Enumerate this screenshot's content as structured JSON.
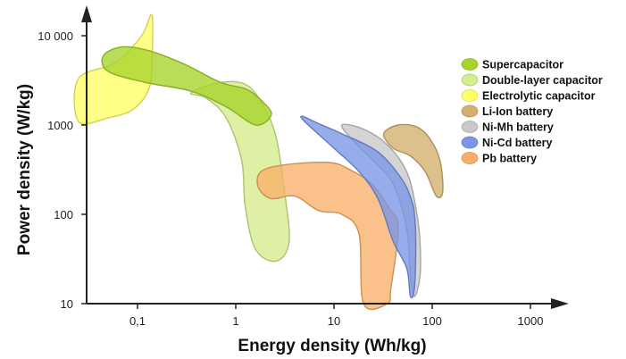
{
  "chart_data": {
    "type": "area",
    "title": "",
    "xlabel": "Energy density (Wh/kg)",
    "ylabel": "Power density (W/kg)",
    "xscale": "log",
    "yscale": "log",
    "xlim": [
      0.03,
      1000
    ],
    "ylim": [
      10,
      10000
    ],
    "x_ticks": [
      {
        "value": 0.1,
        "label": "0,1"
      },
      {
        "value": 1,
        "label": "1"
      },
      {
        "value": 10,
        "label": "10"
      },
      {
        "value": 100,
        "label": "100"
      },
      {
        "value": 1000,
        "label": "1000"
      }
    ],
    "y_ticks": [
      {
        "value": 10,
        "label": "10"
      },
      {
        "value": 100,
        "label": "100"
      },
      {
        "value": 1000,
        "label": "1000"
      },
      {
        "value": 10000,
        "label": "10 000"
      }
    ],
    "grid": false,
    "legend_position": "right",
    "series": [
      {
        "name": "Electrolytic capacitor",
        "color": "#ffff66",
        "region": [
          [
            0.025,
            3300
          ],
          [
            0.06,
            5000
          ],
          [
            0.11,
            10000
          ],
          [
            0.14,
            17000
          ],
          [
            0.14,
            5000
          ],
          [
            0.13,
            2500
          ],
          [
            0.09,
            1500
          ],
          [
            0.05,
            1200
          ],
          [
            0.025,
            1100
          ]
        ]
      },
      {
        "name": "Double-layer capacitor",
        "color": "#d4ec8c",
        "region": [
          [
            0.7,
            3000
          ],
          [
            1.3,
            2800
          ],
          [
            2.0,
            1500
          ],
          [
            2.6,
            700
          ],
          [
            3.1,
            200
          ],
          [
            3.5,
            50
          ],
          [
            2.6,
            30
          ],
          [
            1.6,
            40
          ],
          [
            1.25,
            120
          ],
          [
            1.15,
            400
          ],
          [
            0.8,
            1200
          ],
          [
            0.5,
            2000
          ],
          [
            0.35,
            2300
          ]
        ]
      },
      {
        "name": "Supercapacitor",
        "color": "#a6d42a",
        "region": [
          [
            0.045,
            6000
          ],
          [
            0.07,
            7500
          ],
          [
            0.13,
            6800
          ],
          [
            0.3,
            4800
          ],
          [
            0.7,
            3000
          ],
          [
            1.3,
            2500
          ],
          [
            1.9,
            1800
          ],
          [
            2.3,
            1300
          ],
          [
            1.6,
            1000
          ],
          [
            0.8,
            1600
          ],
          [
            0.35,
            2400
          ],
          [
            0.12,
            3000
          ],
          [
            0.05,
            4000
          ]
        ]
      },
      {
        "name": "Pb battery",
        "color": "#f8b069",
        "region": [
          [
            1.8,
            300
          ],
          [
            3.2,
            360
          ],
          [
            9,
            380
          ],
          [
            15,
            310
          ],
          [
            24,
            220
          ],
          [
            36,
            120
          ],
          [
            45,
            70
          ],
          [
            38,
            15
          ],
          [
            35,
            10
          ],
          [
            20,
            10
          ],
          [
            18,
            60
          ],
          [
            12,
            100
          ],
          [
            7,
            110
          ],
          [
            4,
            160
          ],
          [
            2.3,
            150
          ],
          [
            1.7,
            200
          ]
        ]
      },
      {
        "name": "Ni-Mh  battery",
        "color": "#c8c8c8",
        "region": [
          [
            12,
            1000
          ],
          [
            20,
            900
          ],
          [
            35,
            600
          ],
          [
            55,
            300
          ],
          [
            68,
            120
          ],
          [
            75,
            50
          ],
          [
            75,
            20
          ],
          [
            66,
            12
          ],
          [
            60,
            20
          ],
          [
            55,
            70
          ],
          [
            40,
            220
          ],
          [
            25,
            400
          ],
          [
            16,
            650
          ]
        ]
      },
      {
        "name": "Ni-Cd battery",
        "color": "#7895e6",
        "region": [
          [
            4.8,
            1250
          ],
          [
            6.8,
            1050
          ],
          [
            12,
            800
          ],
          [
            28,
            500
          ],
          [
            50,
            240
          ],
          [
            62,
            140
          ],
          [
            66,
            100
          ],
          [
            68,
            50
          ],
          [
            66,
            15
          ],
          [
            60,
            12
          ],
          [
            55,
            25
          ],
          [
            40,
            50
          ],
          [
            28,
            150
          ],
          [
            18,
            300
          ],
          [
            10,
            550
          ],
          [
            5,
            1100
          ]
        ]
      },
      {
        "name": "Li-Ion battery",
        "color": "#d2b06c",
        "region": [
          [
            32,
            800
          ],
          [
            45,
            1000
          ],
          [
            70,
            950
          ],
          [
            95,
            700
          ],
          [
            120,
            400
          ],
          [
            128,
            180
          ],
          [
            110,
            160
          ],
          [
            85,
            300
          ],
          [
            60,
            450
          ],
          [
            40,
            550
          ]
        ]
      }
    ]
  }
}
